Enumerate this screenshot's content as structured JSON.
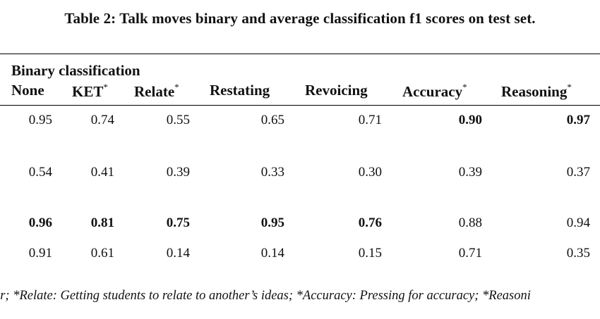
{
  "caption": "Table 2: Talk moves binary and average classification f1 scores on test set.",
  "group_header": "Binary classification",
  "columns": [
    {
      "label": "None",
      "mark": ""
    },
    {
      "label": "KET",
      "mark": "*"
    },
    {
      "label": "Relate",
      "mark": "*"
    },
    {
      "label": "Restating",
      "mark": ""
    },
    {
      "label": "Revoicing",
      "mark": ""
    },
    {
      "label": "Accuracy",
      "mark": "*"
    },
    {
      "label": "Reasoning",
      "mark": "*"
    }
  ],
  "rows": [
    {
      "values": [
        "0.95",
        "0.74",
        "0.55",
        "0.65",
        "0.71",
        "0.90",
        "0.97"
      ],
      "bold": [
        false,
        false,
        false,
        false,
        false,
        true,
        true
      ]
    },
    {
      "values": [
        "0.54",
        "0.41",
        "0.39",
        "0.33",
        "0.30",
        "0.39",
        "0.37"
      ],
      "bold": [
        false,
        false,
        false,
        false,
        false,
        false,
        false
      ]
    },
    {
      "values": [
        "0.96",
        "0.81",
        "0.75",
        "0.95",
        "0.76",
        "0.88",
        "0.94"
      ],
      "bold": [
        true,
        true,
        true,
        true,
        true,
        false,
        false
      ]
    },
    {
      "values": [
        "0.91",
        "0.61",
        "0.14",
        "0.14",
        "0.15",
        "0.71",
        "0.35"
      ],
      "bold": [
        false,
        false,
        false,
        false,
        false,
        false,
        false
      ]
    }
  ],
  "footnote": "er; *Relate: Getting students to relate to another’s ideas; *Accuracy: Pressing for accuracy; *Reasoni"
}
